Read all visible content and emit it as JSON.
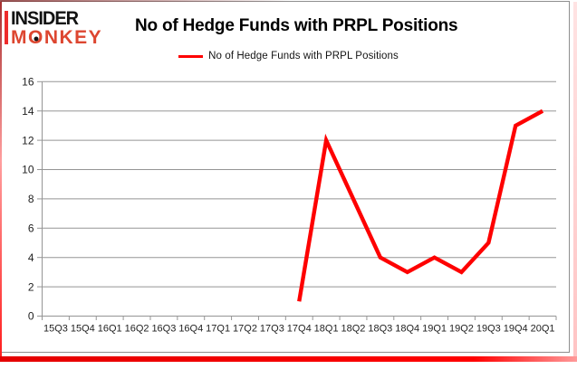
{
  "logo": {
    "insider": "INSIDER",
    "monkey_parts": [
      "M",
      "O",
      "NKEY"
    ]
  },
  "title": "No of Hedge Funds with PRPL Positions",
  "legend": {
    "label": "No of Hedge Funds with PRPL Positions"
  },
  "colors": {
    "line": "#fe0000",
    "grid": "#959595",
    "axis": "#959595",
    "tick_text": "#1f1f1f",
    "monkey_red": "#dd4630",
    "accent_red": "#ee2b2b"
  },
  "chart_data": {
    "type": "line",
    "title": "No of Hedge Funds with PRPL Positions",
    "categories": [
      "15Q3",
      "15Q4",
      "16Q1",
      "16Q2",
      "16Q3",
      "16Q4",
      "17Q1",
      "17Q2",
      "17Q3",
      "17Q4",
      "18Q1",
      "18Q2",
      "18Q3",
      "18Q4",
      "19Q1",
      "19Q2",
      "19Q3",
      "19Q4",
      "20Q1"
    ],
    "series": [
      {
        "name": "No of Hedge Funds with PRPL Positions",
        "color": "#fe0000",
        "values": [
          null,
          null,
          null,
          null,
          null,
          null,
          null,
          null,
          null,
          1,
          12,
          8,
          4,
          3,
          4,
          3,
          5,
          13,
          14
        ]
      }
    ],
    "xlabel": "",
    "ylabel": "",
    "ylim": [
      0,
      16
    ],
    "yticks": [
      0,
      2,
      4,
      6,
      8,
      10,
      12,
      14,
      16
    ],
    "grid": true,
    "legend_position": "top-center"
  }
}
